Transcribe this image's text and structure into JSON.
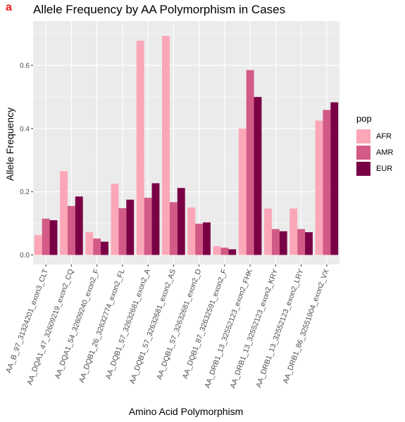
{
  "panel_label": "a",
  "chart_data": {
    "type": "bar",
    "title": "Allele Frequency by AA Polymorphism in Cases",
    "xlabel": "Amino Acid Polymorphism",
    "ylabel": "Allele Frequency",
    "ylim": [
      -0.03,
      0.74
    ],
    "yticks": [
      "0.0",
      "0.2",
      "0.4",
      "0.6"
    ],
    "grid": true,
    "legend_position": "right",
    "legend_title": "pop",
    "categories": [
      "AA_B_97_31324201_exon3_CLT",
      "AA_DQA1_47_32609219_exon2_CQ",
      "AA_DQA1_54_32609240_exon2_F",
      "AA_DQB1_26_32632774_exon2_FL",
      "AA_DQB1_57_32632681_exon2_A",
      "AA_DQB1_57_32632681_exon2_AS",
      "AA_DQB1_57_32632681_exon2_D",
      "AA_DQB1_87_32632591_exon2_F",
      "AA_DRB1_13_32552123_exon2_FHK",
      "AA_DRB1_13_32552123_exon2_KRY",
      "AA_DRB1_13_32552123_exon2_LRY",
      "AA_DRB1_86_32551904_exon2_VX"
    ],
    "series": [
      {
        "name": "AFR",
        "color": "#fba7b8",
        "values": [
          0.063,
          0.265,
          0.072,
          0.225,
          0.678,
          0.693,
          0.15,
          0.028,
          0.4,
          0.147,
          0.147,
          0.425
        ]
      },
      {
        "name": "AMR",
        "color": "#d35a86",
        "values": [
          0.115,
          0.155,
          0.052,
          0.148,
          0.181,
          0.167,
          0.099,
          0.023,
          0.585,
          0.082,
          0.082,
          0.459
        ]
      },
      {
        "name": "EUR",
        "color": "#7a0046",
        "values": [
          0.11,
          0.185,
          0.042,
          0.175,
          0.227,
          0.212,
          0.103,
          0.018,
          0.5,
          0.075,
          0.072,
          0.483
        ]
      }
    ]
  }
}
